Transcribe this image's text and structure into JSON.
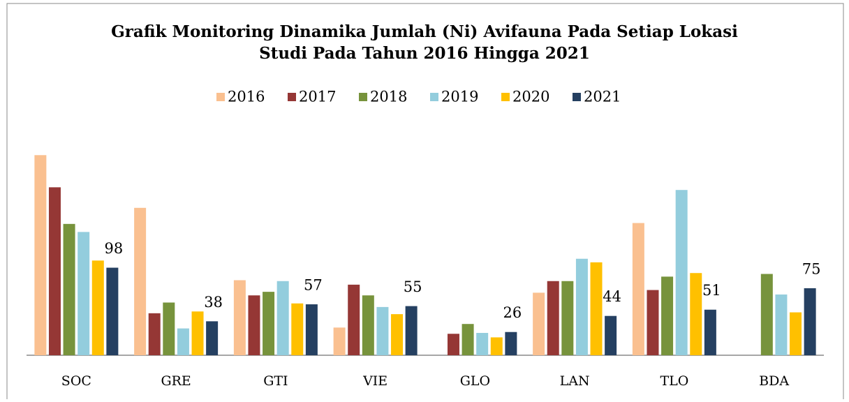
{
  "chart_data": {
    "type": "bar",
    "title": [
      "Grafik Monitoring Dinamika Jumlah (Ni) Avifauna Pada Setiap Lokasi",
      "Studi Pada Tahun 2016 Hingga 2021"
    ],
    "categories": [
      "SOC",
      "GRE",
      "GTI",
      "VIE",
      "GLO",
      "LAN",
      "TLO",
      "BDA"
    ],
    "legend": "top",
    "series": [
      {
        "name": "2016",
        "color": "#FAC090",
        "values": [
          224,
          165,
          84,
          31,
          null,
          70,
          148,
          null
        ]
      },
      {
        "name": "2017",
        "color": "#953735",
        "values": [
          188,
          47,
          67,
          79,
          24,
          83,
          73,
          null
        ]
      },
      {
        "name": "2018",
        "color": "#77933C",
        "values": [
          147,
          59,
          71,
          67,
          35,
          83,
          88,
          91
        ]
      },
      {
        "name": "2019",
        "color": "#93CDDD",
        "values": [
          138,
          30,
          83,
          54,
          25,
          108,
          185,
          68
        ]
      },
      {
        "name": "2020",
        "color": "#FFC000",
        "values": [
          106,
          49,
          58,
          46,
          20,
          104,
          92,
          48
        ]
      },
      {
        "name": "2021",
        "color": "#254061",
        "values": [
          98,
          38,
          57,
          55,
          26,
          44,
          51,
          75
        ],
        "data_labels": true
      }
    ]
  }
}
